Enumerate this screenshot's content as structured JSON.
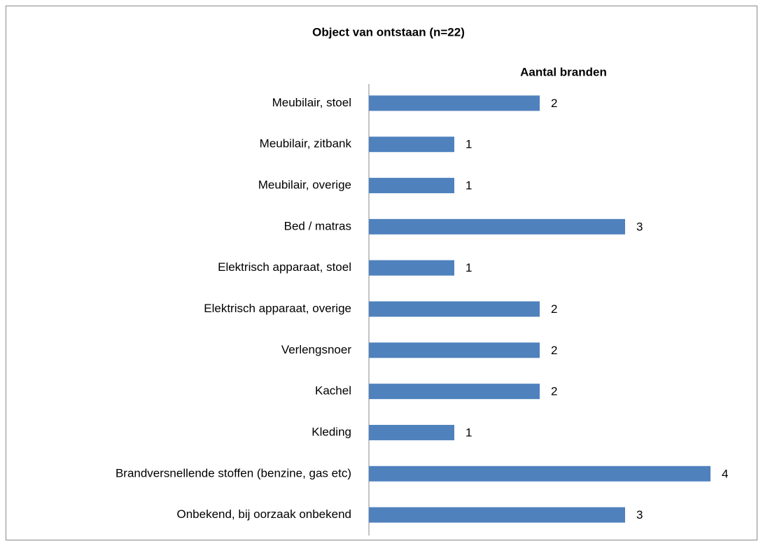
{
  "chart_data": {
    "type": "bar",
    "orientation": "horizontal",
    "title": "Object van ontstaan (n=22)",
    "categories": [
      "Meubilair, stoel",
      "Meubilair, zitbank",
      "Meubilair, overige",
      "Bed / matras",
      "Elektrisch apparaat, stoel",
      "Elektrisch apparaat, overige",
      "Verlengsnoer",
      "Kachel",
      "Kleding",
      "Brandversnellende stoffen (benzine, gas etc)",
      "Onbekend, bij oorzaak onbekend"
    ],
    "series": [
      {
        "name": "Aantal branden",
        "color": "#4f81bd",
        "values": [
          2,
          1,
          1,
          3,
          1,
          2,
          2,
          2,
          1,
          4,
          3
        ]
      }
    ],
    "xlim": [
      0,
      4
    ]
  }
}
